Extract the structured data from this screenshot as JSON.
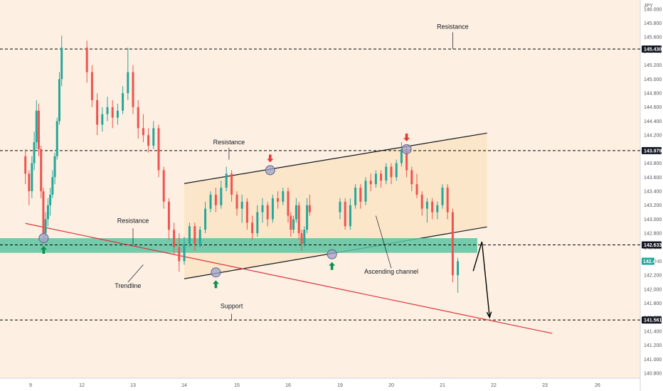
{
  "colors": {
    "background": "#fdf0e2",
    "channel_fill": "#fbe4c6",
    "support_band": "#5cc4a2",
    "trendline": "#e0303a",
    "bull": "#26a69a",
    "bear": "#ef5350",
    "arrow_up": "#0e8f4f",
    "arrow_down": "#e53935",
    "level_line": "#000000",
    "pivot_marker": "#9fa3c9"
  },
  "chart_data": {
    "type": "candlestick",
    "currency": "JPY",
    "y_ticks": [
      "146.000",
      "145.800",
      "145.600",
      "145.400",
      "145.200",
      "145.000",
      "144.800",
      "144.600",
      "144.400",
      "144.200",
      "144.000",
      "143.800",
      "143.600",
      "143.400",
      "143.200",
      "143.000",
      "142.800",
      "142.600",
      "142.400",
      "142.200",
      "142.000",
      "141.800",
      "141.600",
      "141.400",
      "141.200",
      "141.000",
      "140.800"
    ],
    "x_ticks": [
      "9",
      "12",
      "13",
      "14",
      "15",
      "16",
      "19",
      "20",
      "21",
      "22",
      "23",
      "26"
    ],
    "ylim": [
      140.73,
      146.13
    ],
    "grid": false,
    "horizontal_levels": [
      {
        "value": 145.43,
        "label": "145.430"
      },
      {
        "value": 143.979,
        "label": "143.979"
      },
      {
        "value": 142.633,
        "label": "142.633"
      },
      {
        "value": 141.561,
        "label": "141.561"
      }
    ],
    "current_price_tag": "142.40",
    "annotations": [
      {
        "text": "Resistance",
        "x": 21.2,
        "y": 145.72
      },
      {
        "text": "Resistance",
        "x": 14.85,
        "y": 144.07
      },
      {
        "text": "Resistance",
        "x": 13.0,
        "y": 142.95
      },
      {
        "text": "Trendline",
        "x": 12.9,
        "y": 142.02
      },
      {
        "text": "Support",
        "x": 14.9,
        "y": 141.73
      },
      {
        "text": "Ascending channel",
        "x": 20.0,
        "y": 142.22
      }
    ],
    "channel": {
      "upper": [
        [
          14.0,
          143.51
        ],
        [
          21.87,
          144.23
        ]
      ],
      "lower": [
        [
          14.0,
          142.15
        ],
        [
          21.87,
          142.89
        ]
      ]
    },
    "trendline": [
      [
        8.9,
        142.94
      ],
      [
        23.3,
        141.37
      ]
    ],
    "projection_path": [
      [
        21.6,
        142.26
      ],
      [
        21.77,
        142.68
      ],
      [
        21.92,
        141.6
      ]
    ],
    "pivots": [
      {
        "x": 9.4,
        "y": 142.73,
        "arrow": "up"
      },
      {
        "x": 14.6,
        "y": 142.24,
        "arrow": "up"
      },
      {
        "x": 15.65,
        "y": 143.7,
        "arrow": "down"
      },
      {
        "x": 18.35,
        "y": 142.5,
        "arrow": "up"
      },
      {
        "x": 20.3,
        "y": 144.0,
        "arrow": "down"
      }
    ],
    "candles": [
      {
        "t": 8.9,
        "o": 143.9,
        "h": 144.0,
        "l": 143.5,
        "c": 143.65
      },
      {
        "t": 8.97,
        "o": 143.65,
        "h": 143.7,
        "l": 143.2,
        "c": 143.4
      },
      {
        "t": 9.04,
        "o": 143.4,
        "h": 143.9,
        "l": 143.3,
        "c": 143.8
      },
      {
        "t": 9.11,
        "o": 143.8,
        "h": 144.25,
        "l": 143.7,
        "c": 144.1
      },
      {
        "t": 9.18,
        "o": 144.1,
        "h": 144.7,
        "l": 144.0,
        "c": 144.55
      },
      {
        "t": 9.25,
        "o": 144.55,
        "h": 144.65,
        "l": 143.9,
        "c": 144.0
      },
      {
        "t": 9.32,
        "o": 144.0,
        "h": 144.05,
        "l": 143.3,
        "c": 143.4
      },
      {
        "t": 9.39,
        "o": 143.4,
        "h": 143.45,
        "l": 142.65,
        "c": 142.8
      },
      {
        "t": 9.46,
        "o": 142.8,
        "h": 143.1,
        "l": 142.72,
        "c": 143.0
      },
      {
        "t": 9.53,
        "o": 143.0,
        "h": 143.3,
        "l": 142.9,
        "c": 143.2
      },
      {
        "t": 9.6,
        "o": 143.2,
        "h": 143.45,
        "l": 143.05,
        "c": 143.35
      },
      {
        "t": 9.67,
        "o": 143.35,
        "h": 143.7,
        "l": 143.3,
        "c": 143.6
      },
      {
        "t": 9.74,
        "o": 143.6,
        "h": 143.95,
        "l": 143.5,
        "c": 143.9
      },
      {
        "t": 9.81,
        "o": 143.9,
        "h": 144.45,
        "l": 143.85,
        "c": 144.4
      },
      {
        "t": 9.88,
        "o": 144.4,
        "h": 145.1,
        "l": 144.35,
        "c": 145.0
      },
      {
        "t": 9.95,
        "o": 145.0,
        "h": 145.62,
        "l": 144.9,
        "c": 145.45
      },
      {
        "t": 12.1,
        "o": 145.45,
        "h": 145.55,
        "l": 144.95,
        "c": 145.1
      },
      {
        "t": 12.2,
        "o": 145.1,
        "h": 145.2,
        "l": 144.6,
        "c": 144.7
      },
      {
        "t": 12.3,
        "o": 144.7,
        "h": 144.8,
        "l": 144.2,
        "c": 144.35
      },
      {
        "t": 12.4,
        "o": 144.35,
        "h": 144.6,
        "l": 144.25,
        "c": 144.5
      },
      {
        "t": 12.5,
        "o": 144.5,
        "h": 144.75,
        "l": 144.4,
        "c": 144.6
      },
      {
        "t": 12.6,
        "o": 144.6,
        "h": 144.7,
        "l": 144.3,
        "c": 144.45
      },
      {
        "t": 12.7,
        "o": 144.45,
        "h": 144.65,
        "l": 144.35,
        "c": 144.55
      },
      {
        "t": 12.8,
        "o": 144.55,
        "h": 144.9,
        "l": 144.5,
        "c": 144.8
      },
      {
        "t": 12.9,
        "o": 144.8,
        "h": 145.45,
        "l": 144.7,
        "c": 145.1
      },
      {
        "t": 13.0,
        "o": 145.1,
        "h": 145.2,
        "l": 144.5,
        "c": 144.6
      },
      {
        "t": 13.1,
        "o": 144.6,
        "h": 144.7,
        "l": 144.15,
        "c": 144.3
      },
      {
        "t": 13.2,
        "o": 144.3,
        "h": 144.5,
        "l": 144.1,
        "c": 144.2
      },
      {
        "t": 13.3,
        "o": 144.2,
        "h": 144.3,
        "l": 143.95,
        "c": 144.05
      },
      {
        "t": 13.4,
        "o": 144.05,
        "h": 144.4,
        "l": 144.0,
        "c": 144.3
      },
      {
        "t": 13.5,
        "o": 144.3,
        "h": 144.35,
        "l": 143.6,
        "c": 143.7
      },
      {
        "t": 13.6,
        "o": 143.7,
        "h": 143.75,
        "l": 143.15,
        "c": 143.25
      },
      {
        "t": 13.7,
        "o": 143.25,
        "h": 143.3,
        "l": 142.7,
        "c": 142.85
      },
      {
        "t": 13.8,
        "o": 142.85,
        "h": 142.95,
        "l": 142.5,
        "c": 142.6
      },
      {
        "t": 13.9,
        "o": 142.6,
        "h": 142.8,
        "l": 142.25,
        "c": 142.4
      },
      {
        "t": 14.0,
        "o": 142.4,
        "h": 142.75,
        "l": 142.35,
        "c": 142.65
      },
      {
        "t": 14.1,
        "o": 142.65,
        "h": 142.95,
        "l": 142.6,
        "c": 142.9
      },
      {
        "t": 14.2,
        "o": 142.9,
        "h": 142.95,
        "l": 142.55,
        "c": 142.65
      },
      {
        "t": 14.3,
        "o": 142.65,
        "h": 142.9,
        "l": 142.6,
        "c": 142.85
      },
      {
        "t": 14.4,
        "o": 142.85,
        "h": 143.25,
        "l": 142.8,
        "c": 143.15
      },
      {
        "t": 14.5,
        "o": 143.15,
        "h": 143.4,
        "l": 143.1,
        "c": 143.35
      },
      {
        "t": 14.6,
        "o": 143.35,
        "h": 143.45,
        "l": 143.1,
        "c": 143.2
      },
      {
        "t": 14.7,
        "o": 143.2,
        "h": 143.55,
        "l": 143.15,
        "c": 143.45
      },
      {
        "t": 14.8,
        "o": 143.45,
        "h": 143.75,
        "l": 143.4,
        "c": 143.65
      },
      {
        "t": 14.9,
        "o": 143.65,
        "h": 143.7,
        "l": 143.25,
        "c": 143.35
      },
      {
        "t": 15.0,
        "o": 143.35,
        "h": 143.4,
        "l": 143.05,
        "c": 143.15
      },
      {
        "t": 15.1,
        "o": 143.15,
        "h": 143.35,
        "l": 142.95,
        "c": 143.25
      },
      {
        "t": 15.2,
        "o": 143.25,
        "h": 143.3,
        "l": 142.85,
        "c": 142.95
      },
      {
        "t": 15.3,
        "o": 142.95,
        "h": 143.05,
        "l": 142.7,
        "c": 142.8
      },
      {
        "t": 15.4,
        "o": 142.8,
        "h": 143.2,
        "l": 142.75,
        "c": 143.1
      },
      {
        "t": 15.5,
        "o": 143.1,
        "h": 143.3,
        "l": 142.95,
        "c": 143.2
      },
      {
        "t": 15.6,
        "o": 143.2,
        "h": 143.25,
        "l": 142.9,
        "c": 143.0
      },
      {
        "t": 15.7,
        "o": 143.0,
        "h": 143.35,
        "l": 142.95,
        "c": 143.3
      },
      {
        "t": 15.8,
        "o": 143.3,
        "h": 143.4,
        "l": 143.15,
        "c": 143.25
      },
      {
        "t": 15.9,
        "o": 143.25,
        "h": 143.45,
        "l": 143.2,
        "c": 143.4
      },
      {
        "t": 16.0,
        "o": 143.4,
        "h": 143.45,
        "l": 142.95,
        "c": 143.05
      },
      {
        "t": 16.1,
        "o": 143.05,
        "h": 143.1,
        "l": 142.75,
        "c": 142.85
      },
      {
        "t": 16.2,
        "o": 142.85,
        "h": 143.05,
        "l": 142.8,
        "c": 143.0
      },
      {
        "t": 16.3,
        "o": 143.0,
        "h": 143.3,
        "l": 142.95,
        "c": 143.2
      },
      {
        "t": 16.4,
        "o": 143.2,
        "h": 143.25,
        "l": 142.7,
        "c": 142.8
      },
      {
        "t": 16.5,
        "o": 142.8,
        "h": 142.85,
        "l": 142.55,
        "c": 142.65
      },
      {
        "t": 16.6,
        "o": 142.65,
        "h": 142.9,
        "l": 142.6,
        "c": 142.85
      },
      {
        "t": 16.7,
        "o": 142.85,
        "h": 143.3,
        "l": 142.8,
        "c": 143.2
      },
      {
        "t": 16.8,
        "o": 143.2,
        "h": 143.35,
        "l": 143.05,
        "c": 143.1
      },
      {
        "t": 19.0,
        "o": 143.1,
        "h": 143.3,
        "l": 143.0,
        "c": 143.25
      },
      {
        "t": 19.1,
        "o": 143.25,
        "h": 143.3,
        "l": 142.85,
        "c": 142.9
      },
      {
        "t": 19.2,
        "o": 142.9,
        "h": 143.3,
        "l": 142.85,
        "c": 143.2
      },
      {
        "t": 19.3,
        "o": 143.2,
        "h": 143.5,
        "l": 143.15,
        "c": 143.45
      },
      {
        "t": 19.4,
        "o": 143.45,
        "h": 143.5,
        "l": 143.15,
        "c": 143.25
      },
      {
        "t": 19.5,
        "o": 143.25,
        "h": 143.6,
        "l": 143.2,
        "c": 143.55
      },
      {
        "t": 19.6,
        "o": 143.55,
        "h": 143.65,
        "l": 143.4,
        "c": 143.5
      },
      {
        "t": 19.7,
        "o": 143.5,
        "h": 143.7,
        "l": 143.45,
        "c": 143.65
      },
      {
        "t": 19.8,
        "o": 143.65,
        "h": 143.7,
        "l": 143.45,
        "c": 143.55
      },
      {
        "t": 19.9,
        "o": 143.55,
        "h": 143.8,
        "l": 143.5,
        "c": 143.75
      },
      {
        "t": 20.0,
        "o": 143.75,
        "h": 143.8,
        "l": 143.5,
        "c": 143.6
      },
      {
        "t": 20.1,
        "o": 143.6,
        "h": 143.85,
        "l": 143.55,
        "c": 143.8
      },
      {
        "t": 20.2,
        "o": 143.8,
        "h": 144.1,
        "l": 143.75,
        "c": 144.0
      },
      {
        "t": 20.3,
        "o": 144.0,
        "h": 144.05,
        "l": 143.6,
        "c": 143.7
      },
      {
        "t": 20.4,
        "o": 143.7,
        "h": 143.75,
        "l": 143.4,
        "c": 143.5
      },
      {
        "t": 20.5,
        "o": 143.5,
        "h": 143.65,
        "l": 143.3,
        "c": 143.35
      },
      {
        "t": 20.6,
        "o": 143.35,
        "h": 143.4,
        "l": 143.05,
        "c": 143.15
      },
      {
        "t": 20.7,
        "o": 143.15,
        "h": 143.3,
        "l": 142.95,
        "c": 143.25
      },
      {
        "t": 20.8,
        "o": 143.25,
        "h": 143.3,
        "l": 143.0,
        "c": 143.1
      },
      {
        "t": 20.9,
        "o": 143.1,
        "h": 143.25,
        "l": 143.0,
        "c": 143.2
      },
      {
        "t": 21.0,
        "o": 143.2,
        "h": 143.5,
        "l": 143.15,
        "c": 143.45
      },
      {
        "t": 21.1,
        "o": 143.45,
        "h": 143.5,
        "l": 143.0,
        "c": 143.1
      },
      {
        "t": 21.2,
        "o": 143.1,
        "h": 143.15,
        "l": 142.1,
        "c": 142.2
      },
      {
        "t": 21.3,
        "o": 142.2,
        "h": 142.45,
        "l": 141.95,
        "c": 142.4
      }
    ]
  }
}
